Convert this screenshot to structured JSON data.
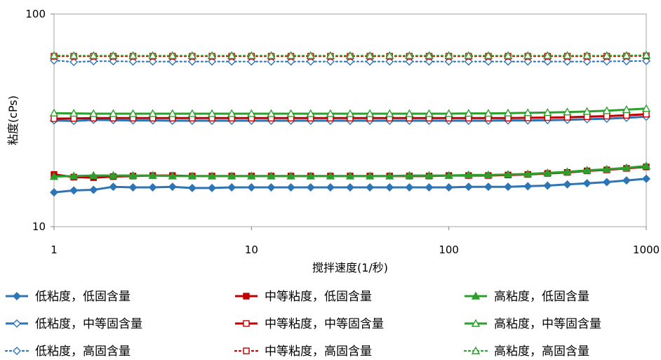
{
  "chart_data": {
    "type": "line",
    "title": "",
    "xlabel": "搅拌速度(1/秒)",
    "ylabel": "粘度(cPs)",
    "xscale": "log",
    "yscale": "log",
    "xlim": [
      1,
      1000
    ],
    "ylim": [
      10,
      100
    ],
    "x_ticks": [
      1,
      10,
      100,
      1000
    ],
    "x_tick_labels": [
      "1",
      "10",
      "100",
      "1000"
    ],
    "y_ticks": [
      10,
      100
    ],
    "y_tick_labels": [
      "10",
      "100"
    ],
    "grid": "none",
    "legend_position": "bottom",
    "x": [
      1,
      1.259,
      1.585,
      1.995,
      2.512,
      3.162,
      3.981,
      5.012,
      6.31,
      7.943,
      10,
      12.59,
      15.85,
      19.95,
      25.12,
      31.62,
      39.81,
      50.12,
      63.1,
      79.43,
      100,
      125.9,
      158.5,
      199.5,
      251.2,
      316.2,
      398.1,
      501.2,
      631,
      794.3,
      1000
    ],
    "series": [
      {
        "name": "低粘度，低固含量",
        "color": "#2e75b6",
        "marker": "diamond",
        "marker_fill": "filled",
        "line_style": "solid",
        "values": [
          14.5,
          14.8,
          14.9,
          15.4,
          15.3,
          15.3,
          15.4,
          15.2,
          15.2,
          15.3,
          15.3,
          15.3,
          15.3,
          15.3,
          15.3,
          15.3,
          15.3,
          15.3,
          15.3,
          15.3,
          15.3,
          15.4,
          15.4,
          15.4,
          15.5,
          15.6,
          15.8,
          16.0,
          16.2,
          16.5,
          16.8
        ]
      },
      {
        "name": "中等粘度，低固含量",
        "color": "#c00000",
        "marker": "square",
        "marker_fill": "filled",
        "line_style": "solid",
        "values": [
          17.6,
          17.1,
          17.0,
          17.2,
          17.3,
          17.4,
          17.4,
          17.3,
          17.3,
          17.3,
          17.3,
          17.3,
          17.3,
          17.3,
          17.3,
          17.3,
          17.3,
          17.3,
          17.3,
          17.3,
          17.4,
          17.4,
          17.4,
          17.5,
          17.6,
          17.8,
          18.0,
          18.3,
          18.5,
          18.8,
          19.1
        ]
      },
      {
        "name": "高粘度，低固含量",
        "color": "#2ca02c",
        "marker": "triangle",
        "marker_fill": "filled",
        "line_style": "solid",
        "values": [
          17.2,
          17.3,
          17.4,
          17.4,
          17.4,
          17.4,
          17.3,
          17.3,
          17.3,
          17.3,
          17.3,
          17.3,
          17.3,
          17.3,
          17.3,
          17.3,
          17.3,
          17.3,
          17.4,
          17.4,
          17.4,
          17.5,
          17.5,
          17.6,
          17.7,
          17.9,
          18.1,
          18.4,
          18.6,
          18.9,
          19.3
        ]
      },
      {
        "name": "低粘度，中等固含量",
        "color": "#2e75b6",
        "marker": "diamond",
        "marker_fill": "open",
        "line_style": "solid",
        "values": [
          31.6,
          31.4,
          31.8,
          31.7,
          31.6,
          31.6,
          31.5,
          31.5,
          31.5,
          31.5,
          31.5,
          31.5,
          31.5,
          31.5,
          31.5,
          31.5,
          31.5,
          31.5,
          31.5,
          31.5,
          31.5,
          31.5,
          31.5,
          31.6,
          31.6,
          31.7,
          31.8,
          32.0,
          32.2,
          32.5,
          32.9
        ]
      },
      {
        "name": "中等粘度，中等固含量",
        "color": "#c00000",
        "marker": "square",
        "marker_fill": "open",
        "line_style": "solid",
        "values": [
          32.2,
          32.3,
          32.4,
          32.4,
          32.4,
          32.4,
          32.4,
          32.4,
          32.4,
          32.4,
          32.4,
          32.4,
          32.4,
          32.4,
          32.4,
          32.4,
          32.4,
          32.4,
          32.4,
          32.4,
          32.4,
          32.4,
          32.4,
          32.4,
          32.5,
          32.6,
          32.7,
          32.9,
          33.1,
          33.4,
          33.8
        ]
      },
      {
        "name": "高粘度，中等固含量",
        "color": "#2ca02c",
        "marker": "triangle",
        "marker_fill": "open",
        "line_style": "solid",
        "values": [
          34.2,
          34.1,
          34.0,
          34.0,
          34.0,
          34.0,
          34.0,
          34.0,
          34.0,
          34.0,
          34.0,
          34.0,
          34.0,
          34.0,
          34.0,
          34.0,
          34.0,
          34.0,
          34.0,
          34.0,
          34.0,
          34.1,
          34.1,
          34.2,
          34.3,
          34.4,
          34.6,
          34.8,
          35.1,
          35.5,
          35.9
        ]
      },
      {
        "name": "低粘度，高固含量",
        "color": "#2e75b6",
        "marker": "diamond",
        "marker_fill": "open",
        "line_style": "dotted",
        "values": [
          60.5,
          59.5,
          60.0,
          60.0,
          59.8,
          59.8,
          59.8,
          59.8,
          59.8,
          59.8,
          59.8,
          59.8,
          59.8,
          59.8,
          59.8,
          59.8,
          59.8,
          59.8,
          59.8,
          59.8,
          59.8,
          59.8,
          59.8,
          59.8,
          59.8,
          59.8,
          59.8,
          59.8,
          59.9,
          60.0,
          60.2
        ]
      },
      {
        "name": "中等粘度，高固含量",
        "color": "#c00000",
        "marker": "square",
        "marker_fill": "open",
        "line_style": "dotted",
        "values": [
          63.3,
          63.3,
          63.3,
          63.3,
          63.3,
          63.3,
          63.3,
          63.3,
          63.3,
          63.3,
          63.3,
          63.3,
          63.3,
          63.3,
          63.3,
          63.3,
          63.3,
          63.3,
          63.3,
          63.3,
          63.3,
          63.3,
          63.3,
          63.3,
          63.3,
          63.3,
          63.3,
          63.3,
          63.3,
          63.4,
          63.6
        ]
      },
      {
        "name": "高粘度，高固含量",
        "color": "#2ca02c",
        "marker": "triangle",
        "marker_fill": "open",
        "line_style": "dotted",
        "values": [
          63.8,
          63.7,
          63.7,
          63.7,
          63.7,
          63.7,
          63.7,
          63.7,
          63.7,
          63.7,
          63.7,
          63.7,
          63.7,
          63.7,
          63.7,
          63.7,
          63.7,
          63.7,
          63.7,
          63.7,
          63.7,
          63.7,
          63.7,
          63.7,
          63.7,
          63.7,
          63.7,
          63.7,
          63.7,
          63.8,
          64.0
        ]
      }
    ]
  }
}
